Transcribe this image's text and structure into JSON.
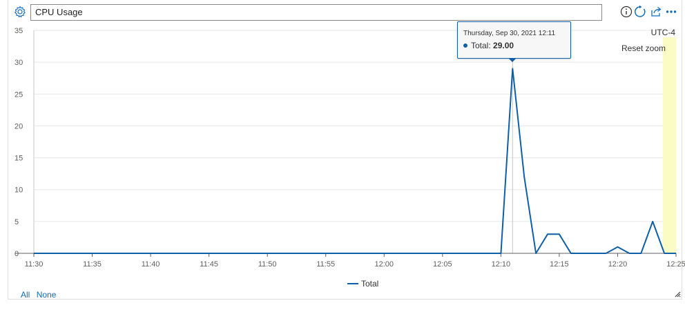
{
  "header": {
    "title": "CPU Usage",
    "icons": {
      "settings": "gear-icon",
      "info": "info-icon",
      "refresh": "refresh-icon",
      "share": "share-icon",
      "more": "more-icon"
    }
  },
  "timezone": "UTC-4",
  "reset_zoom_label": "Reset zoom",
  "tooltip": {
    "date": "Thursday, Sep 30, 2021 12:11",
    "series": "Total:",
    "value": "29.00"
  },
  "footer": {
    "all_label": "All",
    "none_label": "None"
  },
  "colors": {
    "series": "#0f5ea8",
    "highlight": "#fbfbc4",
    "grid": "#e6e6e6",
    "link": "#0f6cbd"
  },
  "chart_data": {
    "type": "line",
    "title": "CPU Usage",
    "xlabel": "",
    "ylabel": "",
    "x_range_minutes": [
      "11:30",
      "12:25"
    ],
    "ylim": [
      0,
      35
    ],
    "y_ticks": [
      "0",
      "5",
      "10",
      "15",
      "20",
      "25",
      "30",
      "35"
    ],
    "x_ticks": [
      "11:30",
      "11:35",
      "11:40",
      "11:45",
      "11:50",
      "11:55",
      "12:00",
      "12:05",
      "12:10",
      "12:15",
      "12:20",
      "12:25"
    ],
    "grid": true,
    "legend": "bottom-center",
    "zoom_highlight": [
      "12:24",
      "12:25"
    ],
    "series": [
      {
        "name": "Total",
        "x": [
          "11:30",
          "11:31",
          "11:32",
          "11:33",
          "11:34",
          "11:35",
          "11:36",
          "11:37",
          "11:38",
          "11:39",
          "11:40",
          "11:41",
          "11:42",
          "11:43",
          "11:44",
          "11:45",
          "11:46",
          "11:47",
          "11:48",
          "11:49",
          "11:50",
          "11:51",
          "11:52",
          "11:53",
          "11:54",
          "11:55",
          "11:56",
          "11:57",
          "11:58",
          "11:59",
          "12:00",
          "12:01",
          "12:02",
          "12:03",
          "12:04",
          "12:05",
          "12:06",
          "12:07",
          "12:08",
          "12:09",
          "12:10",
          "12:11",
          "12:12",
          "12:13",
          "12:14",
          "12:15",
          "12:16",
          "12:17",
          "12:18",
          "12:19",
          "12:20",
          "12:21",
          "12:22",
          "12:23",
          "12:24",
          "12:25"
        ],
        "values": [
          0,
          0,
          0,
          0,
          0,
          0,
          0,
          0,
          0,
          0,
          0,
          0,
          0,
          0,
          0,
          0,
          0,
          0,
          0,
          0,
          0,
          0,
          0,
          0,
          0,
          0,
          0,
          0,
          0,
          0,
          0,
          0,
          0,
          0,
          0,
          0,
          0,
          0,
          0,
          0,
          0,
          29,
          12,
          0,
          3,
          3,
          0,
          0,
          0,
          0,
          1,
          0,
          0,
          5,
          0,
          0
        ]
      }
    ]
  }
}
